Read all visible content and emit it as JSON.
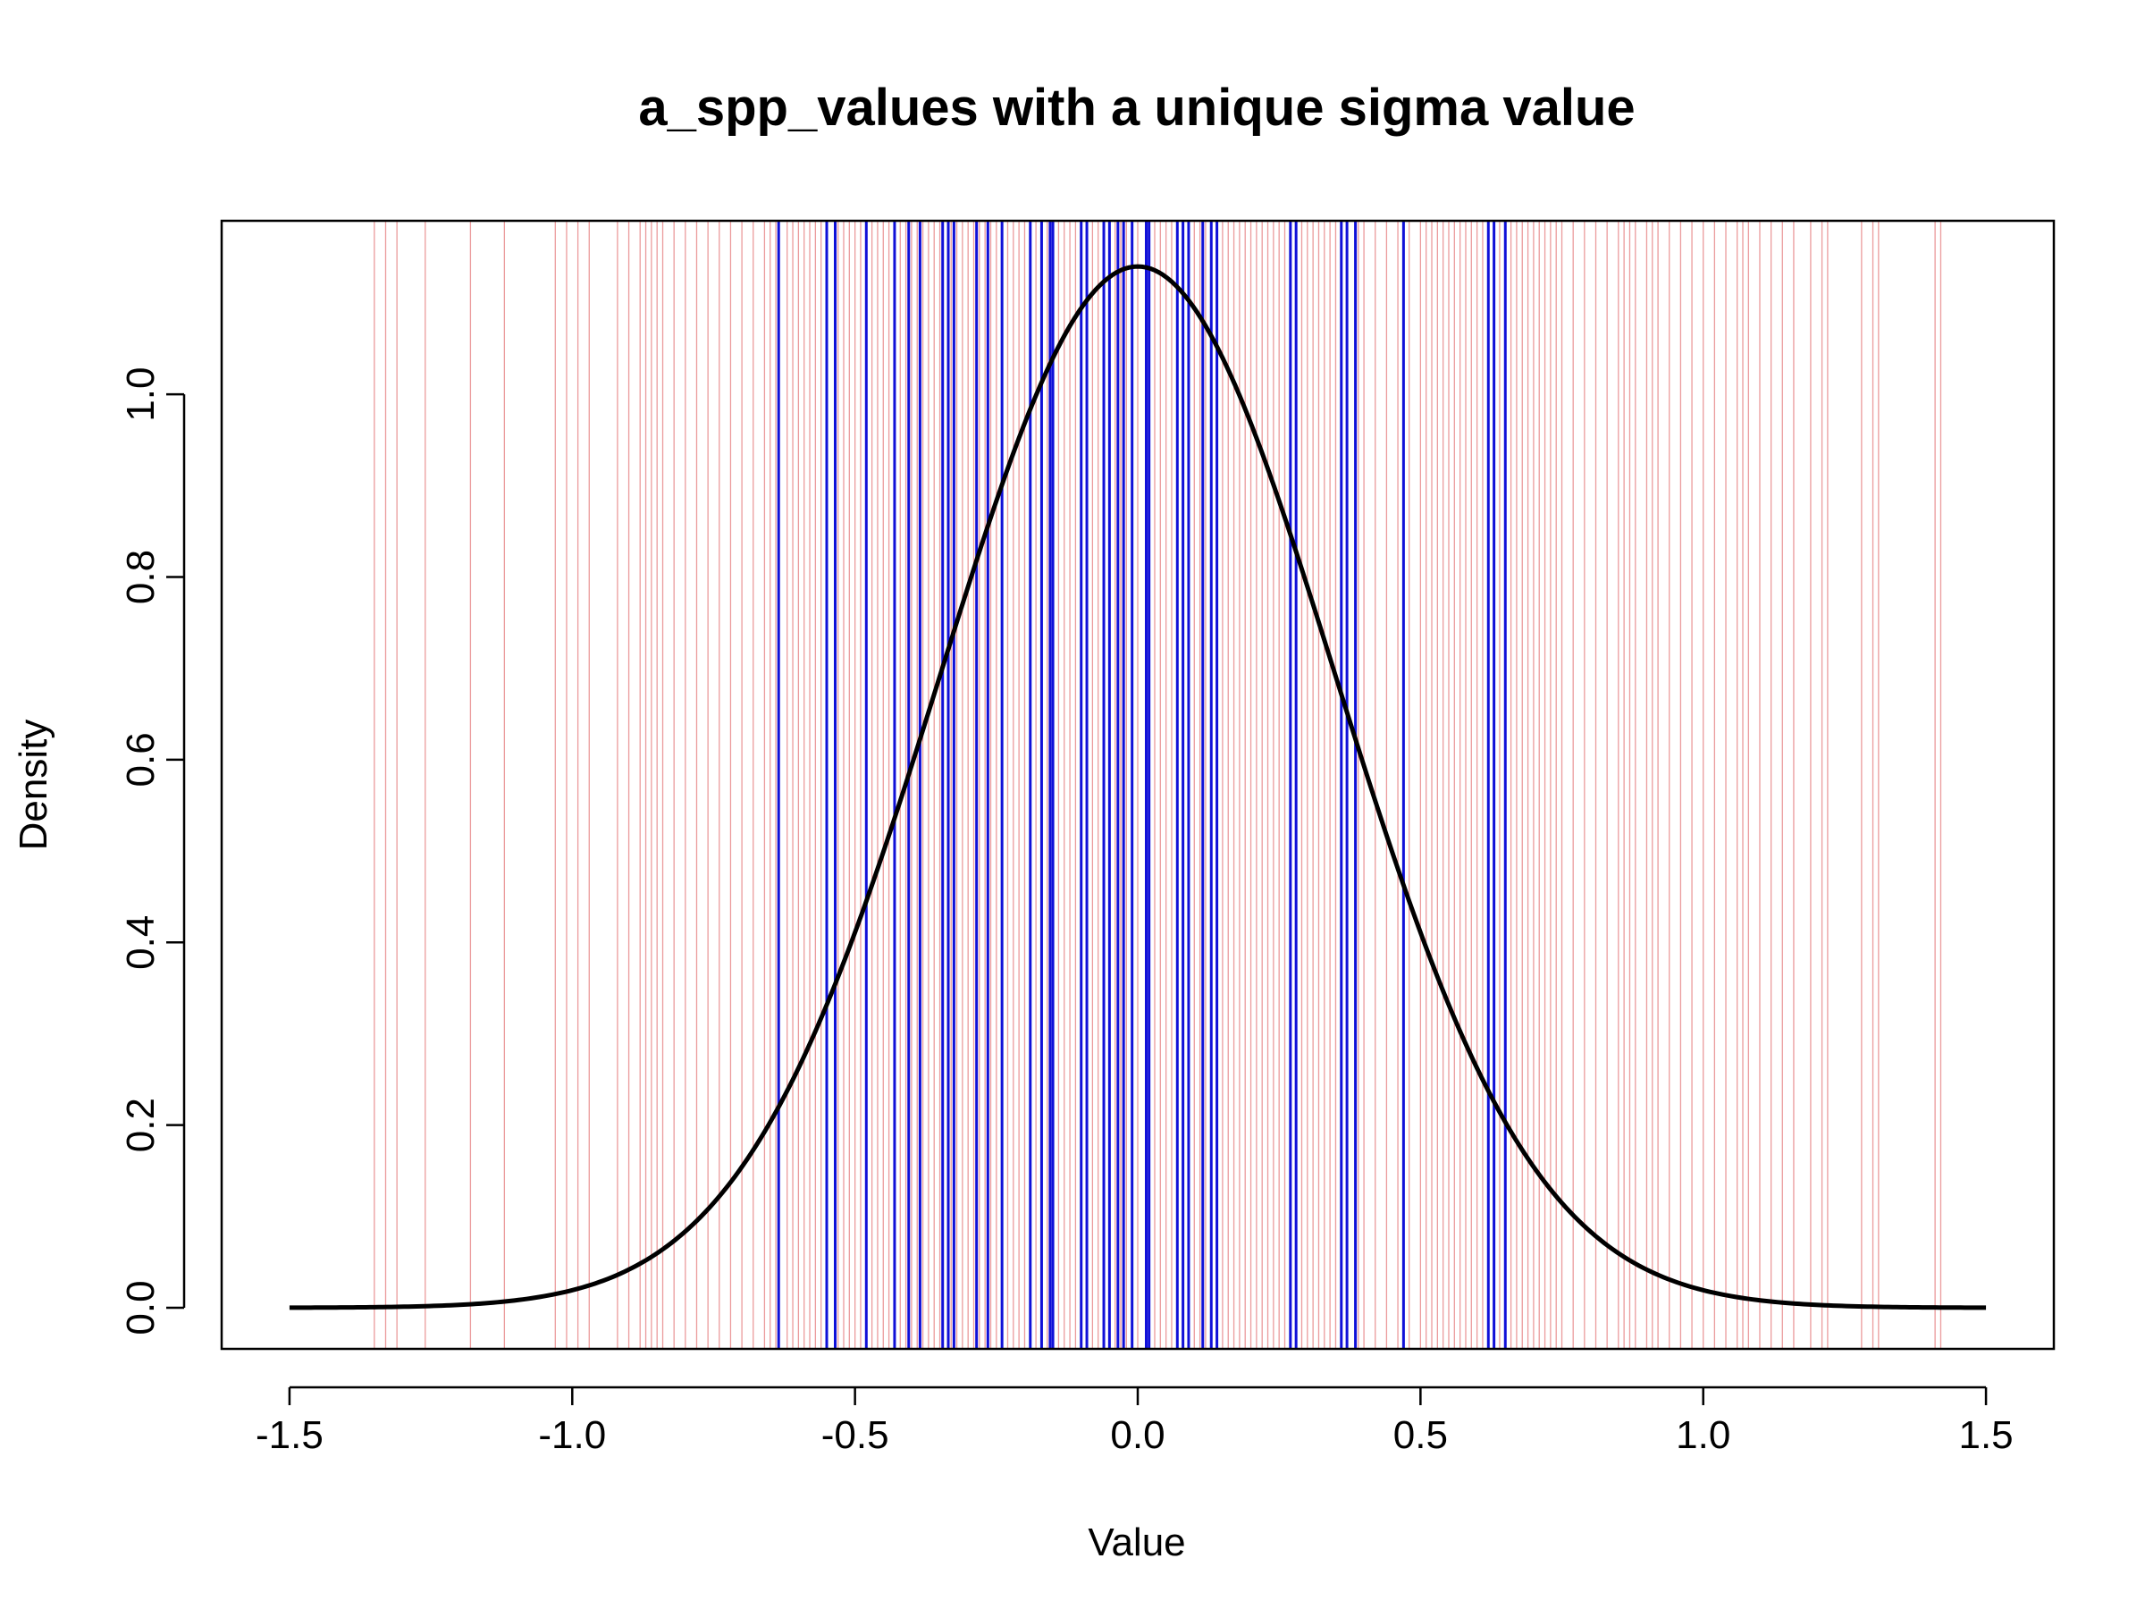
{
  "chart_data": {
    "type": "line",
    "title": "a_spp_values with a unique sigma value",
    "xlabel": "Value",
    "ylabel": "Density",
    "xlim": [
      -1.62,
      1.62
    ],
    "ylim": [
      -0.045,
      1.19
    ],
    "xticks": [
      -1.5,
      -1.0,
      -0.5,
      0.0,
      0.5,
      1.0,
      1.5
    ],
    "xtick_labels": [
      "-1.5",
      "-1.0",
      "-0.5",
      "0.0",
      "0.5",
      "1.0",
      "1.5"
    ],
    "yticks": [
      0.0,
      0.2,
      0.4,
      0.6,
      0.8,
      1.0
    ],
    "ytick_labels": [
      "0.0",
      "0.2",
      "0.4",
      "0.6",
      "0.8",
      "1.0"
    ],
    "grid": false,
    "colors": {
      "curve": "#000000",
      "red_lines": "#e8898b",
      "blue_lines": "#1010d8",
      "axis": "#000000"
    },
    "density_curve": {
      "name": "density",
      "distribution": "normal",
      "mean": 0.0,
      "sigma": 0.35,
      "x_range": [
        -1.5,
        1.5
      ],
      "peak": 1.14
    },
    "red_vlines": [
      -1.35,
      -1.33,
      -1.31,
      -1.26,
      -1.18,
      -1.12,
      -1.03,
      -1.01,
      -0.99,
      -0.97,
      -0.92,
      -0.9,
      -0.88,
      -0.87,
      -0.86,
      -0.85,
      -0.84,
      -0.82,
      -0.8,
      -0.78,
      -0.76,
      -0.74,
      -0.72,
      -0.7,
      -0.68,
      -0.66,
      -0.65,
      -0.64,
      -0.62,
      -0.61,
      -0.6,
      -0.59,
      -0.58,
      -0.57,
      -0.56,
      -0.55,
      -0.53,
      -0.52,
      -0.51,
      -0.5,
      -0.49,
      -0.48,
      -0.47,
      -0.46,
      -0.45,
      -0.44,
      -0.42,
      -0.41,
      -0.4,
      -0.39,
      -0.38,
      -0.37,
      -0.36,
      -0.35,
      -0.33,
      -0.32,
      -0.31,
      -0.3,
      -0.29,
      -0.28,
      -0.27,
      -0.26,
      -0.25,
      -0.24,
      -0.23,
      -0.22,
      -0.21,
      -0.2,
      -0.19,
      -0.18,
      -0.17,
      -0.16,
      -0.14,
      -0.13,
      -0.12,
      -0.11,
      -0.1,
      -0.09,
      -0.08,
      -0.07,
      -0.06,
      -0.05,
      -0.04,
      -0.03,
      -0.02,
      -0.01,
      0.0,
      0.02,
      0.03,
      0.04,
      0.05,
      0.06,
      0.07,
      0.09,
      0.1,
      0.11,
      0.12,
      0.14,
      0.15,
      0.16,
      0.17,
      0.18,
      0.19,
      0.2,
      0.21,
      0.22,
      0.23,
      0.24,
      0.25,
      0.26,
      0.27,
      0.28,
      0.29,
      0.3,
      0.31,
      0.32,
      0.33,
      0.34,
      0.35,
      0.36,
      0.37,
      0.39,
      0.4,
      0.42,
      0.44,
      0.46,
      0.48,
      0.5,
      0.51,
      0.52,
      0.53,
      0.54,
      0.55,
      0.56,
      0.57,
      0.58,
      0.59,
      0.6,
      0.61,
      0.62,
      0.63,
      0.64,
      0.66,
      0.67,
      0.68,
      0.69,
      0.7,
      0.71,
      0.72,
      0.73,
      0.74,
      0.75,
      0.77,
      0.79,
      0.81,
      0.83,
      0.85,
      0.86,
      0.87,
      0.88,
      0.9,
      0.91,
      0.92,
      0.94,
      0.96,
      0.98,
      1.0,
      1.02,
      1.04,
      1.06,
      1.07,
      1.08,
      1.1,
      1.12,
      1.14,
      1.16,
      1.19,
      1.21,
      1.22,
      1.28,
      1.3,
      1.31,
      1.41,
      1.42
    ],
    "blue_vlines": [
      -0.635,
      -0.55,
      -0.535,
      -0.48,
      -0.43,
      -0.405,
      -0.385,
      -0.345,
      -0.335,
      -0.325,
      -0.285,
      -0.265,
      -0.24,
      -0.19,
      -0.17,
      -0.155,
      -0.15,
      -0.1,
      -0.09,
      -0.06,
      -0.05,
      -0.035,
      -0.025,
      -0.01,
      0.015,
      0.02,
      0.07,
      0.08,
      0.09,
      0.115,
      0.13,
      0.14,
      0.27,
      0.28,
      0.36,
      0.37,
      0.385,
      0.47,
      0.62,
      0.63,
      0.65
    ]
  }
}
